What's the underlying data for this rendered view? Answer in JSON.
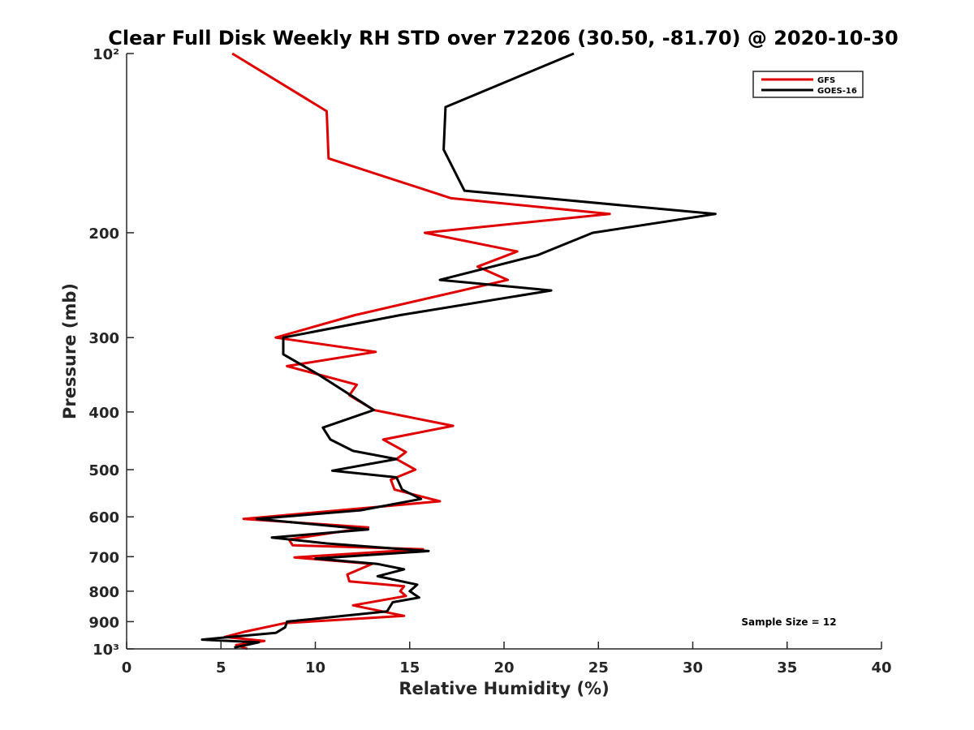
{
  "chart_data": {
    "type": "line",
    "title": "Clear Full Disk Weekly RH STD over 72206 (30.50, -81.70) @ 2020-10-30",
    "xlabel": "Relative Humidity (%)",
    "ylabel": "Pressure (mb)",
    "xlim": [
      0,
      40
    ],
    "ylim": [
      100,
      1000
    ],
    "y_scale": "log",
    "y_reversed": true,
    "x_ticks": [
      0,
      5,
      10,
      15,
      20,
      25,
      30,
      35,
      40
    ],
    "x_tick_labels": [
      "0",
      "5",
      "10",
      "15",
      "20",
      "25",
      "30",
      "35",
      "40"
    ],
    "y_ticks": [
      100,
      200,
      300,
      400,
      500,
      600,
      700,
      800,
      900,
      1000
    ],
    "y_tick_labels": [
      "10²",
      "200",
      "300",
      "400",
      "500",
      "600",
      "700",
      "800",
      "900",
      "10³"
    ],
    "grid": false,
    "legend_position": "top-right",
    "annotation": "Sample Size = 12",
    "series": [
      {
        "name": "GFS",
        "color": "#e00000",
        "points": [
          [
            5.6,
            100
          ],
          [
            10.6,
            125
          ],
          [
            10.7,
            150
          ],
          [
            17.2,
            175
          ],
          [
            25.6,
            186
          ],
          [
            15.8,
            200
          ],
          [
            20.7,
            215
          ],
          [
            18.6,
            228
          ],
          [
            20.2,
            240
          ],
          [
            12.1,
            275
          ],
          [
            7.9,
            300
          ],
          [
            13.2,
            317
          ],
          [
            8.5,
            335
          ],
          [
            12.2,
            360
          ],
          [
            11.8,
            375
          ],
          [
            13.1,
            397
          ],
          [
            17.3,
            422
          ],
          [
            13.6,
            445
          ],
          [
            14.8,
            467
          ],
          [
            14.3,
            480
          ],
          [
            15.3,
            500
          ],
          [
            14.0,
            520
          ],
          [
            14.2,
            540
          ],
          [
            16.6,
            565
          ],
          [
            6.2,
            605
          ],
          [
            12.8,
            625
          ],
          [
            8.6,
            655
          ],
          [
            8.8,
            670
          ],
          [
            15.7,
            680
          ],
          [
            8.9,
            702
          ],
          [
            13.0,
            720
          ],
          [
            11.7,
            750
          ],
          [
            11.8,
            770
          ],
          [
            14.7,
            785
          ],
          [
            14.5,
            800
          ],
          [
            14.8,
            815
          ],
          [
            12.0,
            845
          ],
          [
            14.7,
            880
          ],
          [
            8.4,
            905
          ],
          [
            6.3,
            935
          ],
          [
            5.2,
            955
          ],
          [
            7.3,
            970
          ],
          [
            5.8,
            985
          ],
          [
            6.4,
            1000
          ]
        ]
      },
      {
        "name": "GOES-16",
        "color": "#000000",
        "points": [
          [
            23.7,
            100
          ],
          [
            16.9,
            123
          ],
          [
            16.8,
            145
          ],
          [
            17.9,
            170
          ],
          [
            31.2,
            186
          ],
          [
            24.7,
            200
          ],
          [
            21.8,
            218
          ],
          [
            16.6,
            240
          ],
          [
            22.5,
            250
          ],
          [
            14.5,
            275
          ],
          [
            8.3,
            300
          ],
          [
            8.3,
            320
          ],
          [
            10.1,
            345
          ],
          [
            13.1,
            397
          ],
          [
            10.4,
            425
          ],
          [
            10.8,
            445
          ],
          [
            12.0,
            465
          ],
          [
            14.3,
            480
          ],
          [
            10.9,
            502
          ],
          [
            14.3,
            515
          ],
          [
            14.6,
            540
          ],
          [
            15.6,
            560
          ],
          [
            12.4,
            585
          ],
          [
            6.9,
            605
          ],
          [
            12.8,
            630
          ],
          [
            7.7,
            650
          ],
          [
            10.6,
            665
          ],
          [
            16.0,
            685
          ],
          [
            10.0,
            705
          ],
          [
            13.3,
            720
          ],
          [
            14.7,
            735
          ],
          [
            13.3,
            755
          ],
          [
            15.4,
            780
          ],
          [
            15.0,
            800
          ],
          [
            15.5,
            820
          ],
          [
            14.1,
            835
          ],
          [
            13.8,
            865
          ],
          [
            8.5,
            900
          ],
          [
            8.4,
            920
          ],
          [
            7.9,
            940
          ],
          [
            5.5,
            955
          ],
          [
            4.0,
            965
          ],
          [
            7.0,
            975
          ],
          [
            5.7,
            995
          ]
        ]
      }
    ]
  }
}
